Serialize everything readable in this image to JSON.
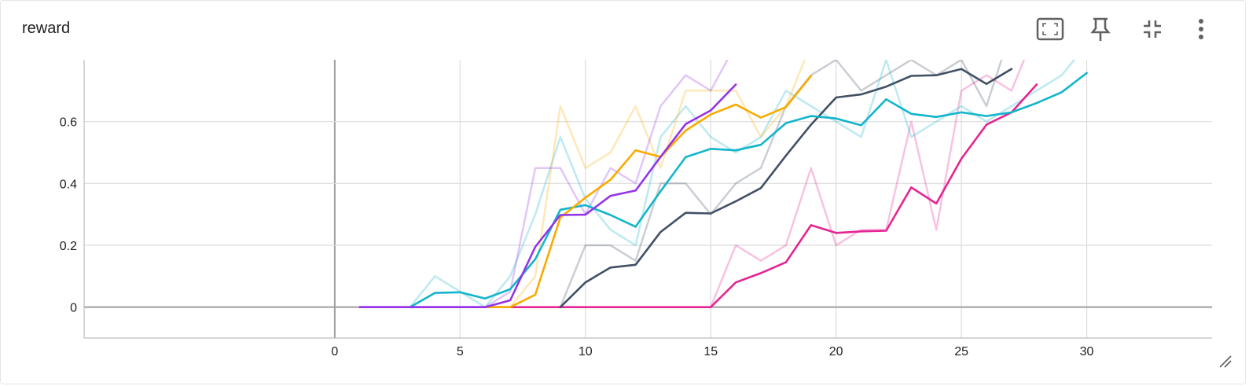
{
  "card": {
    "title": "reward"
  },
  "toolbar": {
    "icons": [
      "fit-domain-icon",
      "pin-icon",
      "collapse-icon",
      "more-vert-icon"
    ]
  },
  "colors": {
    "pink": "#e52592",
    "navy": "#425066",
    "cyan": "#12b5cb",
    "orange": "#f9ab00",
    "purple": "#9334e6"
  },
  "chart_data": {
    "type": "line",
    "title": "reward",
    "xlabel": "",
    "ylabel": "",
    "xlim": [
      -10,
      35
    ],
    "ylim": [
      -0.1,
      0.8
    ],
    "xticks": [
      0,
      5,
      10,
      15,
      20,
      25,
      30
    ],
    "yticks": [
      0,
      0.2,
      0.4,
      0.6
    ],
    "grid": true,
    "series": [
      {
        "color": "#e52592",
        "x": [
          1,
          2,
          3,
          4,
          5,
          6,
          7,
          8,
          9,
          10,
          11,
          12,
          13,
          14,
          15,
          16,
          17,
          18,
          19,
          20,
          21,
          22,
          23,
          24,
          25,
          26,
          27,
          28
        ],
        "raw": [
          0,
          0,
          0,
          0,
          0,
          0,
          0,
          0,
          0,
          0,
          0,
          0,
          0,
          0,
          0,
          0.2,
          0.15,
          0.2,
          0.45,
          0.2,
          0.25,
          0.25,
          0.6,
          0.25,
          0.7,
          0.75,
          0.7,
          0.9
        ],
        "smoothed": [
          0,
          0,
          0,
          0,
          0,
          0,
          0,
          0,
          0,
          0,
          0,
          0,
          0,
          0,
          0,
          0.08,
          0.11,
          0.145,
          0.265,
          0.24,
          0.245,
          0.247,
          0.387,
          0.335,
          0.48,
          0.59,
          0.63,
          0.72
        ]
      },
      {
        "color": "#425066",
        "x": [
          9,
          10,
          11,
          12,
          13,
          14,
          15,
          16,
          17,
          18,
          19,
          20,
          21,
          22,
          23,
          24,
          25,
          26,
          27
        ],
        "raw": [
          0,
          0.2,
          0.2,
          0.15,
          0.4,
          0.4,
          0.3,
          0.4,
          0.45,
          0.65,
          0.75,
          0.8,
          0.7,
          0.75,
          0.8,
          0.75,
          0.8,
          0.65,
          0.9
        ],
        "smoothed": [
          0,
          0.08,
          0.128,
          0.137,
          0.243,
          0.305,
          0.303,
          0.342,
          0.385,
          0.49,
          0.59,
          0.678,
          0.688,
          0.713,
          0.748,
          0.75,
          0.77,
          0.722,
          0.77
        ]
      },
      {
        "color": "#12b5cb",
        "x": [
          3,
          4,
          5,
          6,
          7,
          8,
          9,
          10,
          11,
          12,
          13,
          14,
          15,
          16,
          17,
          18,
          19,
          20,
          21,
          22,
          23,
          24,
          25,
          26,
          27,
          28,
          29,
          30
        ],
        "raw": [
          0,
          0.1,
          0.05,
          0,
          0.1,
          0.3,
          0.55,
          0.35,
          0.25,
          0.2,
          0.55,
          0.65,
          0.55,
          0.5,
          0.55,
          0.7,
          0.65,
          0.6,
          0.55,
          0.8,
          0.55,
          0.6,
          0.65,
          0.6,
          0.65,
          0.7,
          0.75,
          0.85
        ],
        "smoothed": [
          0,
          0.046,
          0.048,
          0.028,
          0.058,
          0.155,
          0.315,
          0.33,
          0.298,
          0.26,
          0.375,
          0.485,
          0.512,
          0.507,
          0.525,
          0.595,
          0.618,
          0.61,
          0.588,
          0.672,
          0.625,
          0.615,
          0.63,
          0.618,
          0.63,
          0.66,
          0.695,
          0.757
        ]
      },
      {
        "color": "#f9ab00",
        "x": [
          6,
          7,
          8,
          9,
          10,
          11,
          12,
          13,
          14,
          15,
          16,
          17,
          18,
          19
        ],
        "raw": [
          0,
          0,
          0.1,
          0.65,
          0.45,
          0.5,
          0.65,
          0.45,
          0.7,
          0.7,
          0.7,
          0.55,
          0.65,
          0.85
        ],
        "smoothed": [
          0,
          0,
          0.04,
          0.29,
          0.354,
          0.412,
          0.507,
          0.486,
          0.571,
          0.623,
          0.655,
          0.613,
          0.647,
          0.748
        ]
      },
      {
        "color": "#9334e6",
        "x": [
          1,
          2,
          3,
          4,
          5,
          6,
          7,
          8,
          9,
          10,
          11,
          12,
          13,
          14,
          15,
          16
        ],
        "raw": [
          0,
          0,
          0,
          0,
          0,
          0,
          0.05,
          0.45,
          0.45,
          0.3,
          0.45,
          0.4,
          0.65,
          0.75,
          0.7,
          0.85
        ],
        "smoothed": [
          0,
          0,
          0,
          0,
          0,
          0,
          0.022,
          0.195,
          0.298,
          0.299,
          0.36,
          0.377,
          0.486,
          0.592,
          0.636,
          0.72
        ]
      }
    ]
  }
}
